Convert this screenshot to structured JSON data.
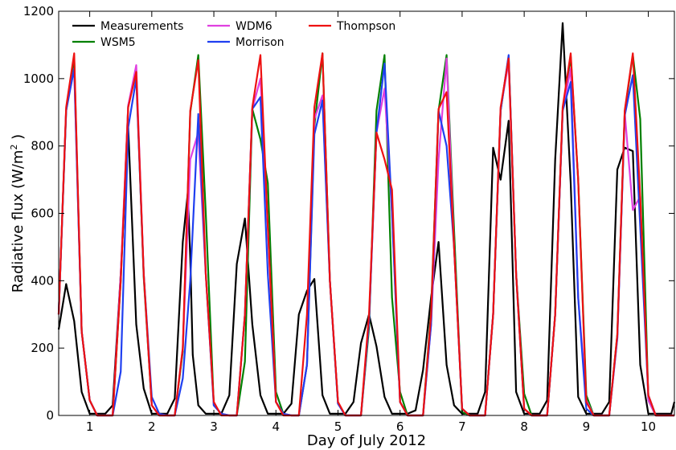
{
  "chart_data": {
    "type": "line",
    "xlabel": "Day of July 2012",
    "ylabel": "Radiative flux (W/m",
    "ylabel_sup": "2",
    "ylabel_close": " )",
    "xlim": [
      0.5,
      10.42
    ],
    "ylim": [
      0,
      1200
    ],
    "xticks": [
      1,
      2,
      3,
      4,
      5,
      6,
      7,
      8,
      9,
      10
    ],
    "yticks": [
      0,
      200,
      400,
      600,
      800,
      1000,
      1200
    ],
    "grid": false,
    "legend_placement": "top-left",
    "series": [
      {
        "name": "Measurements",
        "color": "#000000",
        "x": [
          0.5,
          0.62,
          0.75,
          0.87,
          1.0,
          1.12,
          1.25,
          1.37,
          1.5,
          1.62,
          1.75,
          1.87,
          2.0,
          2.12,
          2.25,
          2.37,
          2.5,
          2.58,
          2.62,
          2.66,
          2.75,
          2.87,
          3.0,
          3.12,
          3.25,
          3.37,
          3.5,
          3.62,
          3.75,
          3.87,
          4.0,
          4.12,
          4.25,
          4.37,
          4.5,
          4.62,
          4.75,
          4.87,
          5.0,
          5.12,
          5.25,
          5.37,
          5.5,
          5.62,
          5.75,
          5.87,
          6.0,
          6.12,
          6.25,
          6.37,
          6.5,
          6.62,
          6.75,
          6.87,
          7.0,
          7.12,
          7.25,
          7.37,
          7.5,
          7.62,
          7.75,
          7.87,
          8.0,
          8.12,
          8.25,
          8.37,
          8.5,
          8.62,
          8.75,
          8.87,
          9.0,
          9.12,
          9.25,
          9.37,
          9.5,
          9.62,
          9.75,
          9.87,
          10.0,
          10.12,
          10.25,
          10.37,
          10.42
        ],
        "y": [
          255,
          390,
          280,
          70,
          5,
          5,
          5,
          30,
          420,
          855,
          270,
          80,
          5,
          5,
          5,
          50,
          515,
          660,
          470,
          180,
          30,
          5,
          5,
          5,
          60,
          450,
          585,
          270,
          60,
          5,
          5,
          5,
          35,
          300,
          370,
          405,
          60,
          5,
          5,
          5,
          40,
          215,
          300,
          205,
          55,
          5,
          5,
          5,
          15,
          135,
          350,
          515,
          150,
          30,
          5,
          5,
          5,
          70,
          795,
          700,
          875,
          70,
          5,
          5,
          5,
          45,
          760,
          1165,
          690,
          55,
          5,
          5,
          5,
          40,
          730,
          795,
          785,
          150,
          5,
          5,
          5,
          5,
          40
        ]
      },
      {
        "name": "WSM5",
        "color": "#008000",
        "x": [
          0.5,
          0.62,
          0.75,
          0.87,
          1.0,
          1.12,
          1.25,
          1.37,
          1.5,
          1.62,
          1.75,
          1.87,
          2.0,
          2.12,
          2.25,
          2.37,
          2.5,
          2.62,
          2.75,
          2.87,
          3.0,
          3.12,
          3.25,
          3.37,
          3.5,
          3.62,
          3.75,
          3.87,
          4.0,
          4.12,
          4.25,
          4.37,
          4.5,
          4.62,
          4.75,
          4.87,
          5.0,
          5.12,
          5.25,
          5.37,
          5.5,
          5.62,
          5.75,
          5.87,
          6.0,
          6.12,
          6.25,
          6.37,
          6.5,
          6.62,
          6.75,
          6.87,
          7.0,
          7.12,
          7.25,
          7.37,
          7.5,
          7.62,
          7.75,
          7.87,
          8.0,
          8.12,
          8.25,
          8.37,
          8.5,
          8.62,
          8.75,
          8.87,
          9.0,
          9.12,
          9.25,
          9.37,
          9.5,
          9.62,
          9.75,
          9.87,
          10.0,
          10.12,
          10.25,
          10.37,
          10.42
        ],
        "y": [
          300,
          905,
          1060,
          250,
          45,
          0,
          0,
          0,
          400,
          920,
          1020,
          410,
          30,
          0,
          0,
          0,
          190,
          900,
          1070,
          600,
          30,
          5,
          0,
          0,
          160,
          910,
          820,
          690,
          70,
          5,
          0,
          0,
          150,
          860,
          1075,
          400,
          35,
          0,
          0,
          0,
          260,
          905,
          1070,
          350,
          70,
          0,
          0,
          0,
          310,
          905,
          1070,
          550,
          10,
          0,
          0,
          0,
          300,
          905,
          1065,
          420,
          65,
          0,
          0,
          0,
          300,
          905,
          1065,
          700,
          60,
          0,
          0,
          0,
          240,
          900,
          1070,
          880,
          45,
          0,
          0,
          0,
          0
        ]
      },
      {
        "name": "WDM6",
        "color": "#e040e0",
        "x": [
          0.5,
          0.62,
          0.75,
          0.87,
          1.0,
          1.12,
          1.25,
          1.37,
          1.5,
          1.62,
          1.75,
          1.87,
          2.0,
          2.12,
          2.25,
          2.37,
          2.5,
          2.62,
          2.75,
          2.87,
          3.0,
          3.12,
          3.25,
          3.37,
          3.5,
          3.62,
          3.75,
          3.87,
          4.0,
          4.12,
          4.25,
          4.37,
          4.5,
          4.62,
          4.75,
          4.87,
          5.0,
          5.12,
          5.25,
          5.37,
          5.5,
          5.62,
          5.75,
          5.87,
          6.0,
          6.12,
          6.25,
          6.37,
          6.5,
          6.62,
          6.75,
          6.87,
          7.0,
          7.12,
          7.25,
          7.37,
          7.5,
          7.62,
          7.75,
          7.87,
          8.0,
          8.12,
          8.25,
          8.37,
          8.5,
          8.62,
          8.75,
          8.87,
          9.0,
          9.12,
          9.25,
          9.37,
          9.5,
          9.62,
          9.75,
          9.87,
          10.0,
          10.12,
          10.25,
          10.37,
          10.42
        ],
        "y": [
          300,
          910,
          1030,
          250,
          45,
          0,
          0,
          0,
          420,
          920,
          1040,
          420,
          30,
          0,
          0,
          0,
          200,
          760,
          840,
          420,
          30,
          5,
          0,
          0,
          300,
          910,
          1000,
          560,
          40,
          5,
          0,
          0,
          150,
          880,
          950,
          400,
          35,
          0,
          0,
          0,
          280,
          840,
          970,
          600,
          40,
          0,
          0,
          0,
          270,
          760,
          1060,
          500,
          20,
          0,
          0,
          0,
          300,
          910,
          1050,
          420,
          20,
          0,
          0,
          0,
          300,
          905,
          1030,
          350,
          45,
          0,
          0,
          0,
          230,
          900,
          610,
          650,
          45,
          0,
          0,
          0,
          0
        ]
      },
      {
        "name": "Morrison",
        "color": "#1f3ff0",
        "x": [
          0.5,
          0.62,
          0.75,
          0.87,
          1.0,
          1.12,
          1.25,
          1.37,
          1.5,
          1.62,
          1.75,
          1.87,
          2.0,
          2.12,
          2.25,
          2.37,
          2.5,
          2.62,
          2.75,
          2.87,
          3.0,
          3.12,
          3.25,
          3.37,
          3.5,
          3.62,
          3.75,
          3.87,
          4.0,
          4.12,
          4.25,
          4.37,
          4.5,
          4.62,
          4.75,
          4.87,
          5.0,
          5.12,
          5.25,
          5.37,
          5.5,
          5.62,
          5.75,
          5.87,
          6.0,
          6.12,
          6.25,
          6.37,
          6.5,
          6.62,
          6.75,
          6.87,
          7.0,
          7.12,
          7.25,
          7.37,
          7.5,
          7.62,
          7.75,
          7.87,
          8.0,
          8.12,
          8.25,
          8.37,
          8.5,
          8.62,
          8.75,
          8.87,
          9.0,
          9.12,
          9.25,
          9.37,
          9.5,
          9.62,
          9.75,
          9.87,
          10.0,
          10.12,
          10.25,
          10.37,
          10.42
        ],
        "y": [
          300,
          905,
          1030,
          250,
          45,
          0,
          0,
          0,
          130,
          855,
          1000,
          420,
          55,
          5,
          0,
          0,
          110,
          400,
          895,
          420,
          30,
          5,
          0,
          0,
          300,
          910,
          945,
          420,
          40,
          5,
          0,
          0,
          150,
          835,
          935,
          400,
          35,
          0,
          0,
          0,
          280,
          840,
          1045,
          600,
          40,
          0,
          0,
          0,
          270,
          905,
          800,
          500,
          20,
          0,
          0,
          0,
          300,
          905,
          1070,
          420,
          20,
          0,
          0,
          0,
          300,
          905,
          990,
          350,
          20,
          0,
          0,
          0,
          230,
          890,
          1010,
          560,
          60,
          0,
          0,
          0,
          0
        ]
      },
      {
        "name": "Thompson",
        "color": "#ee1111",
        "x": [
          0.5,
          0.62,
          0.75,
          0.87,
          1.0,
          1.12,
          1.25,
          1.37,
          1.5,
          1.62,
          1.75,
          1.87,
          2.0,
          2.12,
          2.25,
          2.37,
          2.5,
          2.62,
          2.75,
          2.87,
          3.0,
          3.12,
          3.25,
          3.37,
          3.5,
          3.62,
          3.75,
          3.87,
          4.0,
          4.12,
          4.25,
          4.37,
          4.5,
          4.62,
          4.75,
          4.87,
          5.0,
          5.12,
          5.25,
          5.37,
          5.5,
          5.62,
          5.75,
          5.87,
          6.0,
          6.12,
          6.25,
          6.37,
          6.5,
          6.62,
          6.75,
          6.87,
          7.0,
          7.12,
          7.25,
          7.37,
          7.5,
          7.62,
          7.75,
          7.87,
          8.0,
          8.12,
          8.25,
          8.37,
          8.5,
          8.62,
          8.75,
          8.87,
          9.0,
          9.12,
          9.25,
          9.37,
          9.5,
          9.62,
          9.75,
          9.87,
          10.0,
          10.12,
          10.25,
          10.37,
          10.42
        ],
        "y": [
          300,
          915,
          1075,
          250,
          45,
          0,
          0,
          0,
          400,
          915,
          1020,
          420,
          30,
          0,
          0,
          0,
          200,
          905,
          1055,
          420,
          40,
          0,
          0,
          0,
          300,
          915,
          1070,
          560,
          40,
          0,
          0,
          0,
          300,
          915,
          1075,
          400,
          40,
          0,
          0,
          0,
          300,
          840,
          760,
          670,
          40,
          0,
          0,
          0,
          300,
          910,
          960,
          500,
          20,
          0,
          0,
          0,
          300,
          915,
          1060,
          420,
          20,
          0,
          0,
          0,
          300,
          915,
          1075,
          700,
          40,
          0,
          0,
          0,
          240,
          905,
          1075,
          650,
          60,
          0,
          0,
          0,
          0
        ]
      }
    ]
  }
}
